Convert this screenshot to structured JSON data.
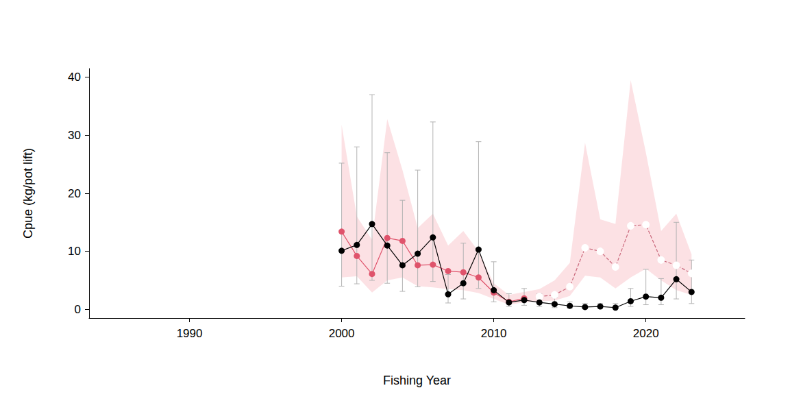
{
  "chart_data": {
    "type": "line",
    "x_label": "Fishing Year",
    "y_label": "Cpue (kg/pot lift)",
    "xlim": [
      1983.4,
      2026.5
    ],
    "xticks": [
      1990,
      2000,
      2010,
      2020
    ],
    "ylim": [
      -1.5,
      41.5
    ],
    "yticks": [
      0,
      10,
      20,
      30,
      40
    ],
    "grid": false,
    "x": [
      2000,
      2001,
      2002,
      2003,
      2004,
      2005,
      2006,
      2007,
      2008,
      2009,
      2010,
      2011,
      2012,
      2013,
      2014,
      2015,
      2016,
      2017,
      2018,
      2019,
      2020,
      2021,
      2022,
      2023
    ],
    "series": [
      {
        "color": "#DF536B",
        "marker": "filled",
        "line_style": "solid",
        "values": [
          13.4,
          9.2,
          6.1,
          12.3,
          11.8,
          7.6,
          7.7,
          6.6,
          6.4,
          5.5,
          2.9,
          1.3,
          1.9,
          null,
          null,
          null,
          null,
          null,
          null,
          null,
          null,
          null,
          null,
          null
        ],
        "band_low": [
          5.5,
          5.7,
          2.9,
          5.0,
          5.5,
          4.0,
          3.8,
          3.5,
          3.3,
          2.8,
          1.8,
          0.8,
          1.2,
          1.4,
          1.5,
          2.3,
          5.8,
          5.5,
          3.6,
          5.5,
          7.0,
          5.0,
          3.3,
          2.5
        ],
        "band_high": [
          31.8,
          16.0,
          12.0,
          32.8,
          24.0,
          14.0,
          16.5,
          11.0,
          13.5,
          10.0,
          4.5,
          2.5,
          3.0,
          3.5,
          5.0,
          8.0,
          28.7,
          15.5,
          14.7,
          39.5,
          27.0,
          13.5,
          16.5,
          9.5
        ]
      },
      {
        "color": "#C9667A",
        "marker": "open",
        "line_style": "dashed",
        "values": [
          null,
          null,
          null,
          null,
          null,
          null,
          null,
          null,
          null,
          null,
          null,
          null,
          null,
          2.2,
          2.5,
          3.9,
          10.6,
          10.0,
          7.3,
          14.4,
          14.6,
          8.5,
          7.6,
          6.2
        ]
      },
      {
        "color": "#000000",
        "marker": "filled",
        "line_style": "solid",
        "values": [
          10.1,
          11.1,
          14.7,
          11.0,
          7.6,
          9.6,
          12.4,
          2.6,
          4.5,
          10.3,
          3.3,
          1.2,
          1.6,
          1.2,
          0.9,
          0.6,
          0.4,
          0.5,
          0.3,
          1.4,
          2.2,
          2.0,
          5.2,
          3.0
        ],
        "error_low": [
          4.0,
          4.4,
          5.0,
          4.5,
          3.1,
          3.9,
          4.8,
          1.1,
          1.8,
          3.6,
          1.3,
          0.5,
          0.7,
          0.5,
          0.3,
          0.2,
          0.15,
          0.15,
          0.15,
          0.5,
          0.8,
          0.8,
          1.8,
          1.0
        ],
        "error_high": [
          25.2,
          28.0,
          37.0,
          27.0,
          18.8,
          24.0,
          32.3,
          6.0,
          11.4,
          28.9,
          8.2,
          2.7,
          3.6,
          2.7,
          2.0,
          1.3,
          1.0,
          1.0,
          1.0,
          3.6,
          6.9,
          5.3,
          15.0,
          8.5
        ]
      }
    ]
  }
}
